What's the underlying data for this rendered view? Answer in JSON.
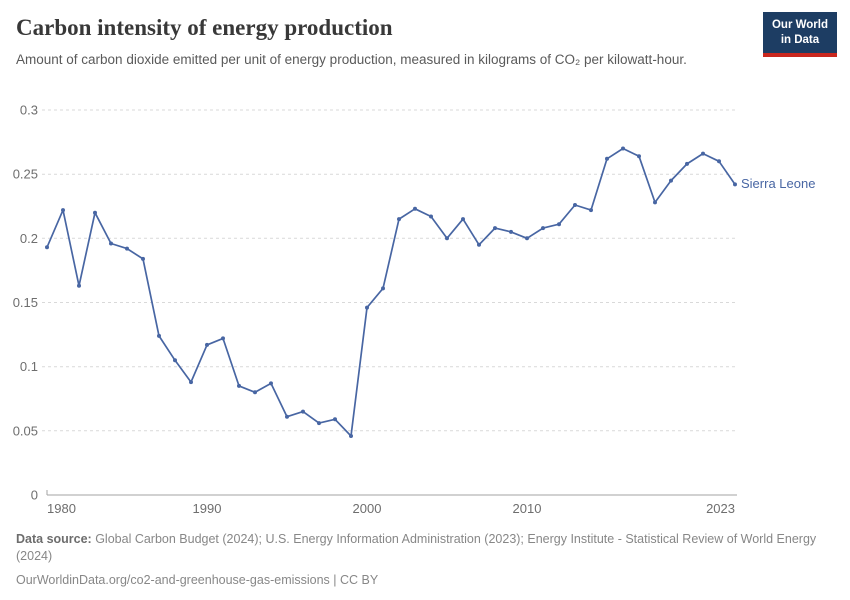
{
  "header": {
    "title": "Carbon intensity of energy production",
    "subtitle": "Amount of carbon dioxide emitted per unit of energy production, measured in kilograms of CO₂ per kilowatt-hour.",
    "logo": {
      "line1": "Our World",
      "line2": "in Data"
    }
  },
  "chart_data": {
    "type": "line",
    "title": "Carbon intensity of energy production",
    "xlabel": "",
    "ylabel": "kilograms of CO₂ per kilowatt-hour",
    "ylim": [
      0,
      0.3
    ],
    "yticks": [
      0,
      0.05,
      0.1,
      0.15,
      0.2,
      0.25,
      0.3
    ],
    "xticks": [
      1980,
      1990,
      2000,
      2010,
      2023
    ],
    "grid": "horizontal-dashed",
    "legend_position": "end-of-line-label",
    "line_color": "#4866a3",
    "x": [
      1980,
      1981,
      1982,
      1983,
      1984,
      1985,
      1986,
      1987,
      1988,
      1989,
      1990,
      1991,
      1992,
      1993,
      1994,
      1995,
      1996,
      1997,
      1998,
      1999,
      2000,
      2001,
      2002,
      2003,
      2004,
      2005,
      2006,
      2007,
      2008,
      2009,
      2010,
      2011,
      2012,
      2013,
      2014,
      2015,
      2016,
      2017,
      2018,
      2019,
      2020,
      2021,
      2022,
      2023
    ],
    "series": [
      {
        "name": "Sierra Leone",
        "values": [
          0.193,
          0.222,
          0.163,
          0.22,
          0.196,
          0.192,
          0.184,
          0.124,
          0.105,
          0.088,
          0.117,
          0.122,
          0.085,
          0.08,
          0.087,
          0.061,
          0.065,
          0.056,
          0.059,
          0.046,
          0.146,
          0.161,
          0.215,
          0.223,
          0.217,
          0.2,
          0.215,
          0.195,
          0.208,
          0.205,
          0.2,
          0.208,
          0.211,
          0.226,
          0.222,
          0.262,
          0.27,
          0.264,
          0.228,
          0.245,
          0.258,
          0.266,
          0.26,
          0.242
        ]
      }
    ]
  },
  "colors": {
    "line": "#4866a3",
    "logo_background": "#1d3d63",
    "logo_underline": "#c9271e",
    "gridline": "#d9d9d9",
    "axis": "#a3a3a3",
    "tick_label": "#6e6e6e"
  },
  "footer": {
    "source_label": "Data source:",
    "source_text": " Global Carbon Budget (2024); U.S. Energy Information Administration (2023); Energy Institute - Statistical Review of World Energy (2024)",
    "link_line": "OurWorldinData.org/co2-and-greenhouse-gas-emissions | CC BY"
  }
}
